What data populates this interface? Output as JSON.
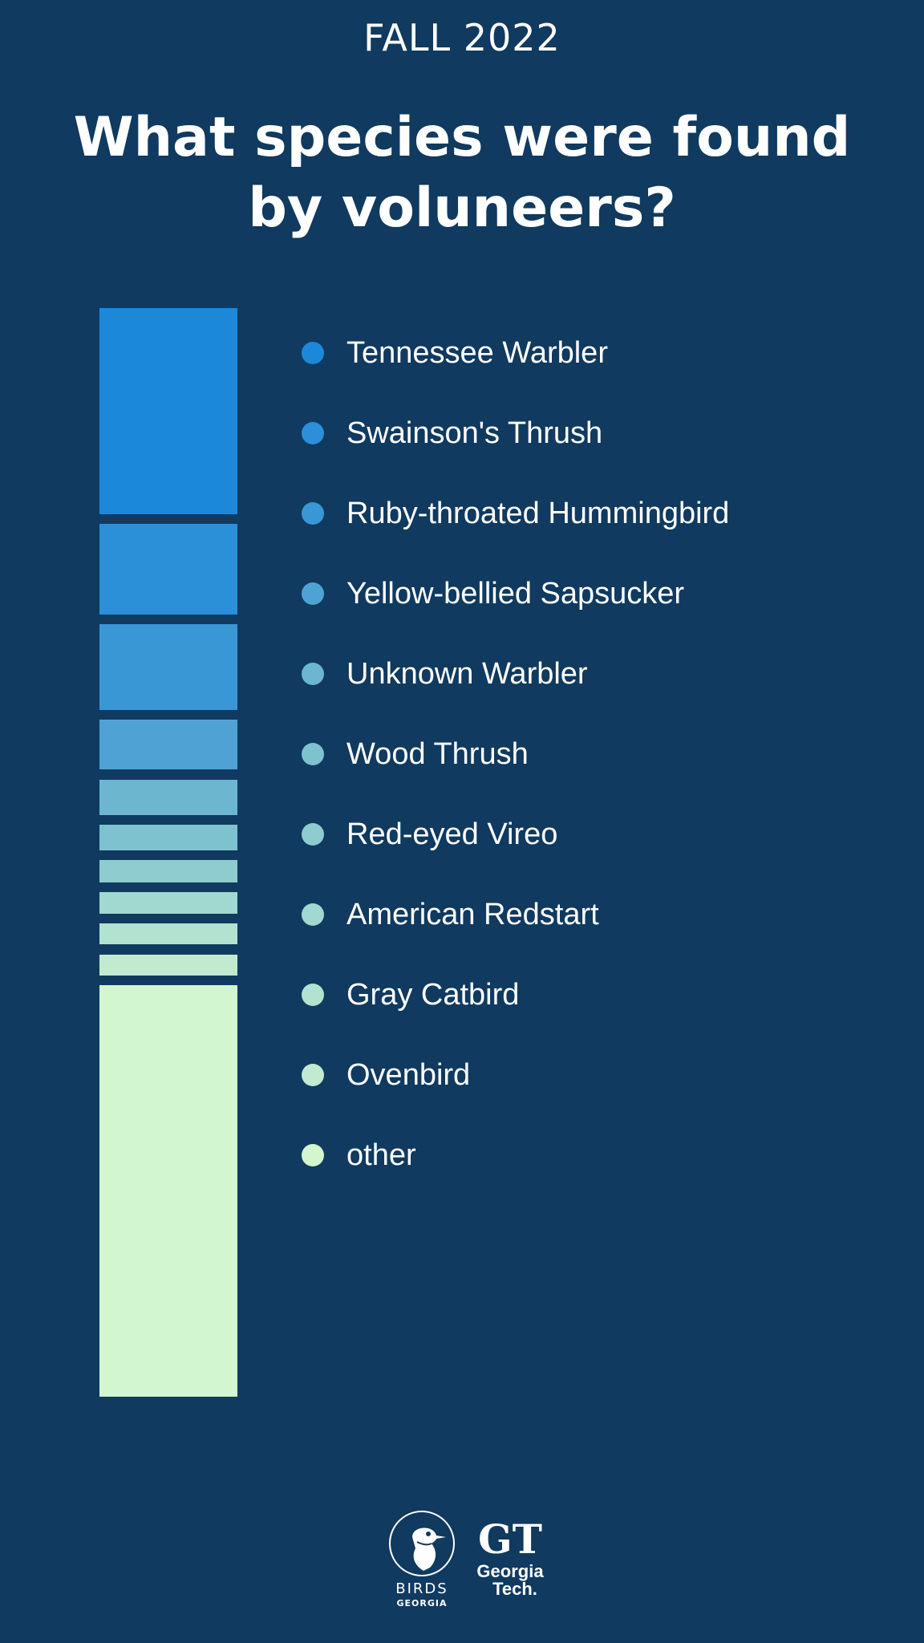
{
  "header": {
    "season": "FALL 2022",
    "title": "What species were found by voluneers?"
  },
  "chart_data": {
    "type": "bar",
    "orientation": "stacked-vertical",
    "title": "What species were found by voluneers?",
    "categories": [
      "Tennessee Warbler",
      "Swainson's Thrush",
      "Ruby-throated Hummingbird",
      "Yellow-bellied Sapsucker",
      "Unknown Warbler",
      "Wood Thrush",
      "Red-eyed Vireo",
      "American Redstart",
      "Gray Catbird",
      "Ovenbird",
      "other"
    ],
    "values": [
      19.2,
      8.4,
      8.0,
      4.7,
      3.3,
      2.4,
      2.1,
      2.0,
      2.0,
      2.0,
      38.3
    ],
    "unit": "% of total",
    "colors": [
      "#1c88da",
      "#2b90d8",
      "#3a97d5",
      "#4ea3d4",
      "#6cb6d0",
      "#7ec1cf",
      "#8ecccf",
      "#a1d8d0",
      "#b2e2d0",
      "#c1ead0",
      "#d2f6cd"
    ],
    "legend_position": "right",
    "grid": false
  },
  "footer": {
    "logos": [
      {
        "name": "birds-georgia-logo",
        "lines": [
          "BIRDS",
          "GEORGIA"
        ]
      },
      {
        "name": "georgia-tech-logo",
        "lines": [
          "GT",
          "Georgia",
          "Tech."
        ]
      }
    ]
  }
}
